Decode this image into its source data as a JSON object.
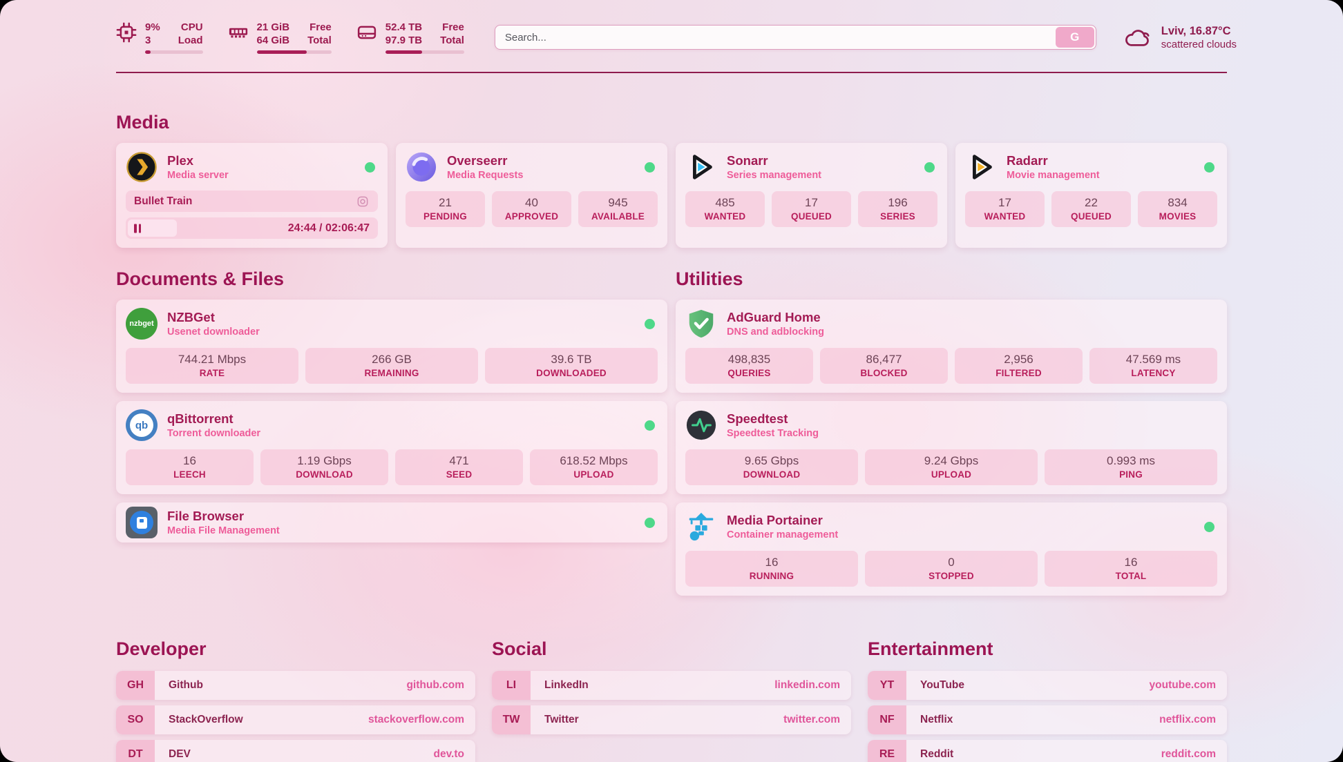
{
  "colors": {
    "accent": "#9c1453",
    "online_dot": "#4ed889",
    "header_text": "#8f1c4e",
    "divider": "#8e1b4d"
  },
  "header": {
    "system": {
      "cpu": {
        "values": [
          "9%",
          "3"
        ],
        "labels": [
          "CPU",
          "Load"
        ],
        "percent": 9
      },
      "memory": {
        "values": [
          "21 GiB",
          "64 GiB"
        ],
        "labels": [
          "Free",
          "Total"
        ],
        "percent": 67
      },
      "disk": {
        "values": [
          "52.4 TB",
          "97.9 TB"
        ],
        "labels": [
          "Free",
          "Total"
        ],
        "percent": 47
      }
    },
    "search": {
      "placeholder": "Search...",
      "button_label": "G"
    },
    "weather": {
      "location": "Lviv, 16.87°C",
      "condition": "scattered clouds"
    }
  },
  "sections": {
    "media": "Media",
    "documents": "Documents & Files",
    "utilities": "Utilities",
    "developer": "Developer",
    "social": "Social",
    "entertainment": "Entertainment"
  },
  "apps": {
    "plex": {
      "name": "Plex",
      "subtitle": "Media server",
      "online": true,
      "now_playing": {
        "title": "Bullet Train",
        "time_display": "24:44 / 02:06:47",
        "progress_percent": 19.5
      }
    },
    "overseerr": {
      "name": "Overseerr",
      "subtitle": "Media Requests",
      "online": true,
      "stats": [
        {
          "value": "21",
          "label": "PENDING"
        },
        {
          "value": "40",
          "label": "APPROVED"
        },
        {
          "value": "945",
          "label": "AVAILABLE"
        }
      ]
    },
    "sonarr": {
      "name": "Sonarr",
      "subtitle": "Series management",
      "online": true,
      "stats": [
        {
          "value": "485",
          "label": "WANTED"
        },
        {
          "value": "17",
          "label": "QUEUED"
        },
        {
          "value": "196",
          "label": "SERIES"
        }
      ]
    },
    "radarr": {
      "name": "Radarr",
      "subtitle": "Movie management",
      "online": true,
      "stats": [
        {
          "value": "17",
          "label": "WANTED"
        },
        {
          "value": "22",
          "label": "QUEUED"
        },
        {
          "value": "834",
          "label": "MOVIES"
        }
      ]
    },
    "nzbget": {
      "name": "NZBGet",
      "subtitle": "Usenet downloader",
      "online": true,
      "stats": [
        {
          "value": "744.21 Mbps",
          "label": "RATE"
        },
        {
          "value": "266 GB",
          "label": "REMAINING"
        },
        {
          "value": "39.6 TB",
          "label": "DOWNLOADED"
        }
      ]
    },
    "qbittorrent": {
      "name": "qBittorrent",
      "subtitle": "Torrent downloader",
      "online": true,
      "stats": [
        {
          "value": "16",
          "label": "LEECH"
        },
        {
          "value": "1.19 Gbps",
          "label": "DOWNLOAD"
        },
        {
          "value": "471",
          "label": "SEED"
        },
        {
          "value": "618.52 Mbps",
          "label": "UPLOAD"
        }
      ]
    },
    "filebrowser": {
      "name": "File Browser",
      "subtitle": "Media File Management",
      "online": true
    },
    "adguard": {
      "name": "AdGuard Home",
      "subtitle": "DNS and adblocking",
      "online": false,
      "stats": [
        {
          "value": "498,835",
          "label": "QUERIES"
        },
        {
          "value": "86,477",
          "label": "BLOCKED"
        },
        {
          "value": "2,956",
          "label": "FILTERED"
        },
        {
          "value": "47.569 ms",
          "label": "LATENCY"
        }
      ]
    },
    "speedtest": {
      "name": "Speedtest",
      "subtitle": "Speedtest Tracking",
      "online": false,
      "stats": [
        {
          "value": "9.65 Gbps",
          "label": "DOWNLOAD"
        },
        {
          "value": "9.24 Gbps",
          "label": "UPLOAD"
        },
        {
          "value": "0.993 ms",
          "label": "PING"
        }
      ]
    },
    "portainer": {
      "name": "Media Portainer",
      "subtitle": "Container management",
      "online": true,
      "stats": [
        {
          "value": "16",
          "label": "RUNNING"
        },
        {
          "value": "0",
          "label": "STOPPED"
        },
        {
          "value": "16",
          "label": "TOTAL"
        }
      ]
    }
  },
  "bookmarks": {
    "developer": [
      {
        "abbr": "GH",
        "name": "Github",
        "url": "github.com"
      },
      {
        "abbr": "SO",
        "name": "StackOverflow",
        "url": "stackoverflow.com"
      },
      {
        "abbr": "DT",
        "name": "DEV",
        "url": "dev.to"
      }
    ],
    "social": [
      {
        "abbr": "LI",
        "name": "LinkedIn",
        "url": "linkedin.com"
      },
      {
        "abbr": "TW",
        "name": "Twitter",
        "url": "twitter.com"
      }
    ],
    "entertainment": [
      {
        "abbr": "YT",
        "name": "YouTube",
        "url": "youtube.com"
      },
      {
        "abbr": "NF",
        "name": "Netflix",
        "url": "netflix.com"
      },
      {
        "abbr": "RE",
        "name": "Reddit",
        "url": "reddit.com"
      }
    ]
  }
}
